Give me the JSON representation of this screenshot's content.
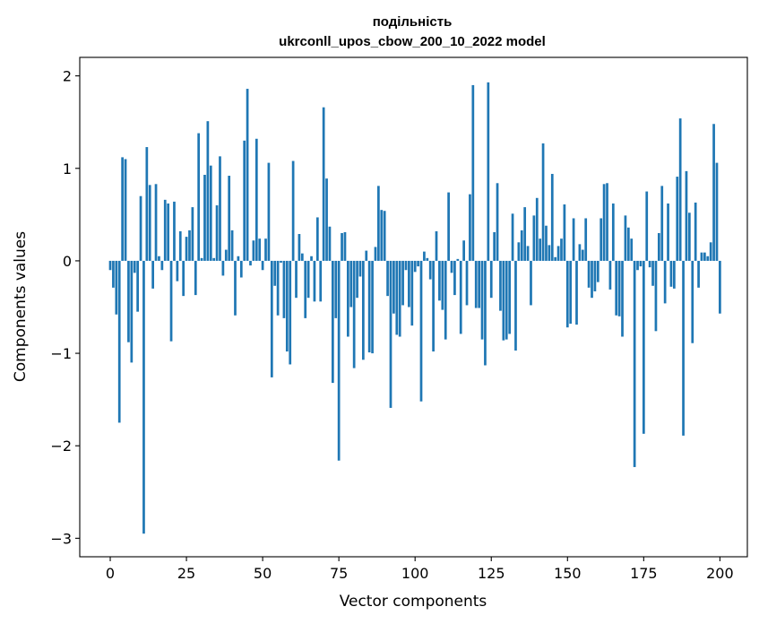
{
  "chart_data": {
    "type": "bar",
    "title_line1": "подільність",
    "title_line2": "ukrconll_upos_cbow_200_10_2022 model",
    "xlabel": "Vector components",
    "ylabel": "Components values",
    "xlim": [
      -10,
      209
    ],
    "ylim": [
      -3.2,
      2.2
    ],
    "xticks": [
      0,
      25,
      50,
      75,
      100,
      125,
      150,
      175,
      200
    ],
    "yticks": [
      -3,
      -2,
      -1,
      0,
      1,
      2
    ],
    "ytick_labels": [
      "−3",
      "−2",
      "−1",
      "0",
      "1",
      "2"
    ],
    "bar_color": "#1f77b4",
    "grid": false,
    "values": [
      -0.1,
      -0.29,
      -0.58,
      -1.75,
      1.12,
      1.1,
      -0.88,
      -1.1,
      -0.13,
      -0.55,
      0.7,
      -2.95,
      1.23,
      0.82,
      -0.3,
      0.83,
      0.05,
      -0.1,
      0.66,
      0.62,
      -0.87,
      0.64,
      -0.22,
      0.32,
      -0.38,
      0.26,
      0.33,
      0.58,
      -0.37,
      1.38,
      0.03,
      0.93,
      1.51,
      1.03,
      0.03,
      0.6,
      1.13,
      -0.16,
      0.12,
      0.92,
      0.33,
      -0.59,
      0.05,
      -0.18,
      1.3,
      1.86,
      -0.05,
      0.22,
      1.32,
      0.24,
      -0.1,
      0.24,
      1.06,
      -1.26,
      -0.27,
      -0.59,
      -0.02,
      -0.62,
      -0.98,
      -1.12,
      1.08,
      -0.4,
      0.29,
      0.08,
      -0.62,
      -0.4,
      0.05,
      -0.44,
      0.47,
      -0.44,
      1.66,
      0.89,
      0.37,
      -1.32,
      -0.62,
      -2.16,
      0.3,
      0.31,
      -0.82,
      -0.5,
      -1.16,
      -0.4,
      -0.17,
      -1.07,
      0.11,
      -0.99,
      -1.0,
      0.15,
      0.81,
      0.55,
      0.54,
      -0.38,
      -1.59,
      -0.57,
      -0.8,
      -0.82,
      -0.48,
      -0.1,
      -0.5,
      -0.7,
      -0.12,
      -0.06,
      -1.52,
      0.1,
      0.03,
      -0.2,
      -0.98,
      0.32,
      -0.43,
      -0.53,
      -0.85,
      0.74,
      -0.13,
      -0.37,
      0.02,
      -0.79,
      0.22,
      -0.48,
      0.72,
      1.9,
      -0.51,
      -0.51,
      -0.85,
      -1.13,
      1.93,
      -0.4,
      0.31,
      0.84,
      -0.54,
      -0.86,
      -0.85,
      -0.79,
      0.51,
      -0.97,
      0.2,
      0.33,
      0.58,
      0.16,
      -0.48,
      0.49,
      0.68,
      0.24,
      1.27,
      0.38,
      0.17,
      0.94,
      0.04,
      0.16,
      0.24,
      0.61,
      -0.72,
      -0.68,
      0.46,
      -0.69,
      0.18,
      0.12,
      0.46,
      -0.29,
      -0.4,
      -0.33,
      -0.23,
      0.46,
      0.83,
      0.84,
      -0.31,
      0.62,
      -0.59,
      -0.6,
      -0.82,
      0.49,
      0.36,
      0.24,
      -2.23,
      -0.1,
      -0.06,
      -1.87,
      0.75,
      -0.07,
      -0.27,
      -0.76,
      0.3,
      0.81,
      -0.46,
      0.62,
      -0.28,
      -0.3,
      0.91,
      1.54,
      -1.89,
      0.97,
      0.52,
      -0.89,
      0.63,
      -0.29,
      0.09,
      0.09,
      0.05,
      0.2,
      1.48,
      1.06,
      -0.57
    ]
  }
}
